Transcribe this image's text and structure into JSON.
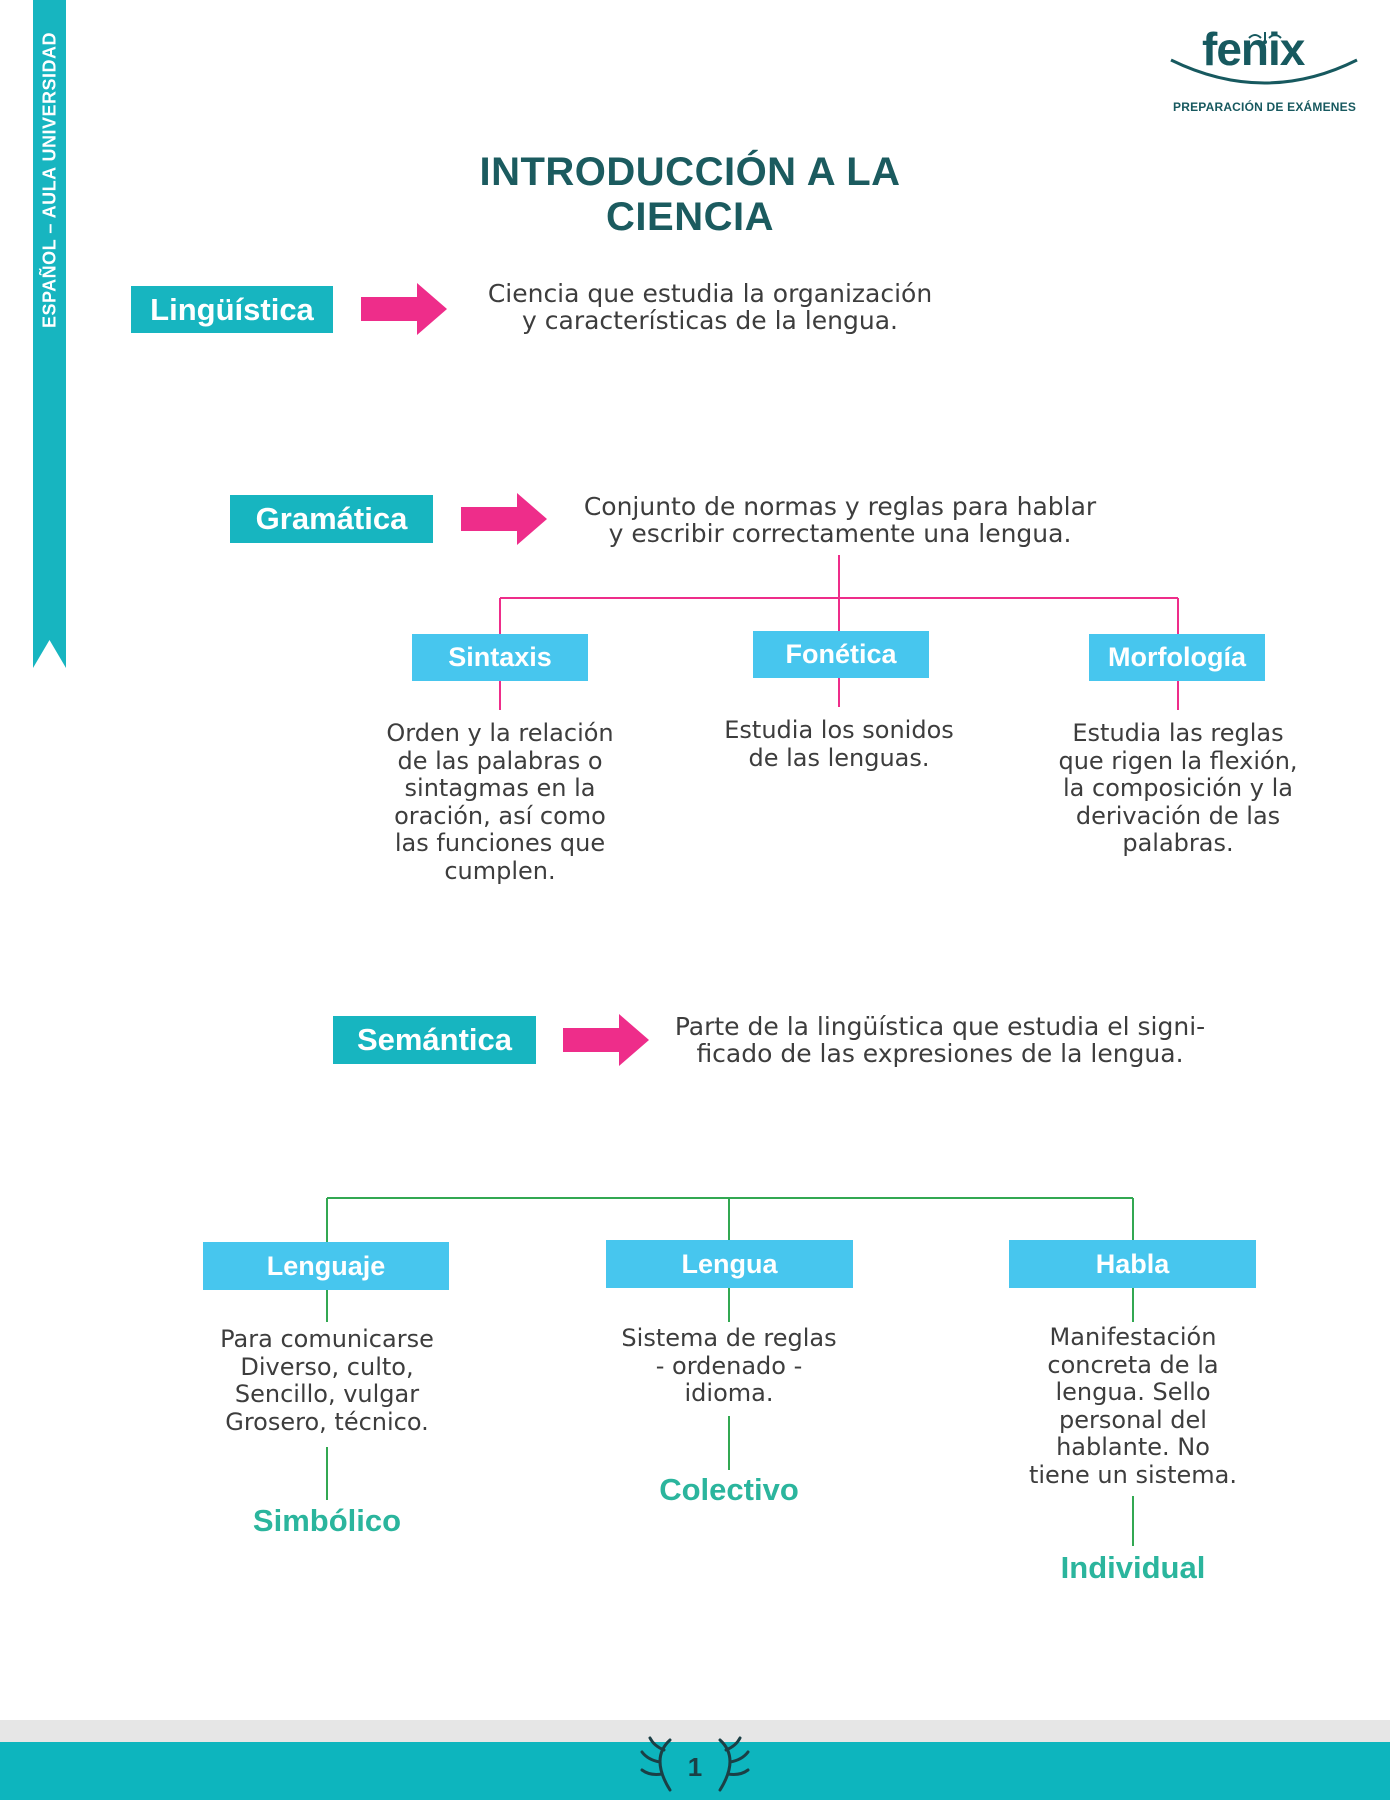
{
  "sidebar": {
    "label": "ESPAÑOL – AULA UNIVERSIDAD"
  },
  "logo": {
    "name": "fenix",
    "tagline": "PREPARACIÓN DE EXÁMENES"
  },
  "title": "INTRODUCCIÓN A LA CIENCIA",
  "sections": {
    "linguistica": {
      "label": "Lingüística",
      "lines": [
        "Ciencia que estudia la organización",
        "y características de la lengua."
      ]
    },
    "gramatica": {
      "label": "Gramática",
      "lines": [
        "Conjunto de normas y reglas para hablar",
        "y escribir correctamente una lengua."
      ],
      "children": [
        {
          "label": "Sintaxis",
          "lines": [
            "Orden y la relación",
            "de las palabras o",
            "sintagmas en la",
            "oración, así como",
            "las funciones que",
            "cumplen."
          ]
        },
        {
          "label": "Fonética",
          "lines": [
            "Estudia los sonidos",
            "de las lenguas."
          ]
        },
        {
          "label": "Morfología",
          "lines": [
            "Estudia las reglas",
            "que rigen la flexión,",
            "la composición y la",
            "derivación de las",
            "palabras."
          ]
        }
      ]
    },
    "semantica": {
      "label": "Semántica",
      "lines": [
        "Parte de la lingüística que estudia el signi-",
        "ficado de las expresiones de la lengua."
      ],
      "children": [
        {
          "label": "Lenguaje",
          "lines": [
            "Para comunicarse",
            "Diverso, culto,",
            "Sencillo, vulgar",
            "Grosero, técnico."
          ],
          "result": "Simbólico"
        },
        {
          "label": "Lengua",
          "lines": [
            "Sistema de reglas",
            "- ordenado -",
            "idioma."
          ],
          "result": "Colectivo"
        },
        {
          "label": "Habla",
          "lines": [
            "Manifestación",
            "concreta de la",
            "lengua. Sello",
            "personal del",
            "hablante. No",
            "tiene un sistema."
          ],
          "result": "Individual"
        }
      ]
    }
  },
  "footer": {
    "page_number": "1"
  },
  "colors": {
    "teal": "#17b5c0",
    "light_blue": "#47c6ee",
    "pink": "#ee2d8a",
    "green_line": "#32a852",
    "result_green": "#2bb59d",
    "title": "#1b5b5f"
  }
}
